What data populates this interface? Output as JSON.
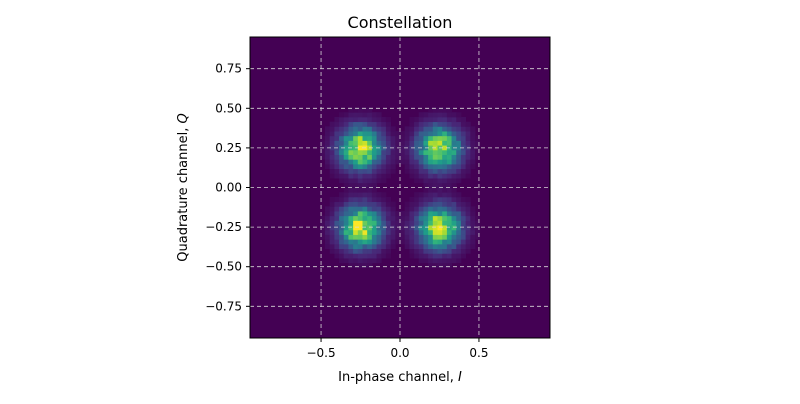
{
  "chart_data": {
    "type": "heatmap",
    "title": "Constellation",
    "xlabel_prefix": "In-phase channel, ",
    "xlabel_symbol": "I",
    "ylabel_prefix": "Quadrature channel, ",
    "ylabel_symbol": "Q",
    "xlim": [
      -0.95,
      0.95
    ],
    "ylim": [
      -0.95,
      0.95
    ],
    "xticks": [
      -0.5,
      0.0,
      0.5
    ],
    "xtick_labels": [
      "−0.5",
      "0.0",
      "0.5"
    ],
    "yticks": [
      -0.75,
      -0.5,
      -0.25,
      0.0,
      0.25,
      0.5,
      0.75
    ],
    "ytick_labels": [
      "−0.75",
      "−0.50",
      "−0.25",
      "0.00",
      "0.25",
      "0.50",
      "0.75"
    ],
    "grid": true,
    "colormap": "viridis",
    "background_color": "#440154",
    "clusters": [
      {
        "I": -0.25,
        "Q": 0.25
      },
      {
        "I": 0.25,
        "Q": 0.25
      },
      {
        "I": -0.25,
        "Q": -0.25
      },
      {
        "I": 0.25,
        "Q": -0.25
      }
    ],
    "cluster_spread": 0.09,
    "bins": 64
  }
}
